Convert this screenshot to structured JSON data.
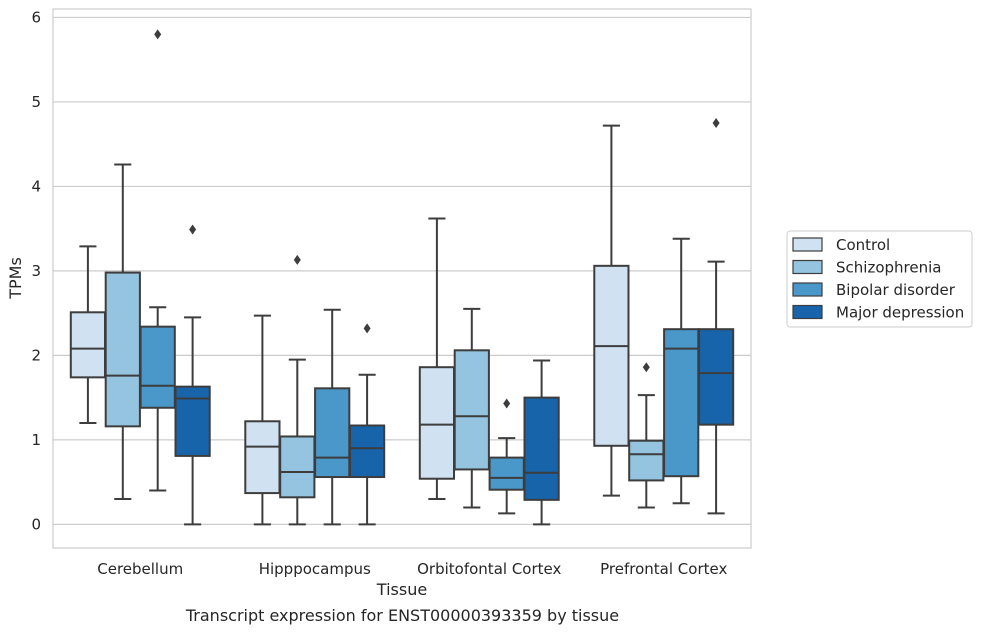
{
  "chart_data": {
    "type": "box",
    "title": "",
    "caption": "Transcript expression for ENST00000393359 by tissue",
    "xlabel": "Tissue",
    "ylabel": "TPMs",
    "ylim": [
      -0.28,
      6.1
    ],
    "yticks": [
      "0",
      "1",
      "2",
      "3",
      "4",
      "5",
      "6"
    ],
    "grid": "horizontal",
    "legend_position": "right",
    "categories": [
      "Cerebellum",
      "Hipppocampus",
      "Orbitofontal Cortex",
      "Prefrontal Cortex"
    ],
    "series": [
      {
        "name": "Control",
        "color": "#d0e1f2",
        "boxes": [
          {
            "whislo": 1.2,
            "q1": 1.74,
            "med": 2.08,
            "q3": 2.51,
            "whishi": 3.29,
            "fliers": []
          },
          {
            "whislo": 0.0,
            "q1": 0.37,
            "med": 0.92,
            "q3": 1.22,
            "whishi": 2.47,
            "fliers": []
          },
          {
            "whislo": 0.3,
            "q1": 0.54,
            "med": 1.18,
            "q3": 1.86,
            "whishi": 3.62,
            "fliers": []
          },
          {
            "whislo": 0.34,
            "q1": 0.93,
            "med": 2.11,
            "q3": 3.06,
            "whishi": 4.72,
            "fliers": []
          }
        ]
      },
      {
        "name": "Schizophrenia",
        "color": "#94c4df",
        "boxes": [
          {
            "whislo": 0.3,
            "q1": 1.16,
            "med": 1.76,
            "q3": 2.98,
            "whishi": 4.26,
            "fliers": []
          },
          {
            "whislo": 0.0,
            "q1": 0.32,
            "med": 0.62,
            "q3": 1.04,
            "whishi": 1.95,
            "fliers": [
              3.13
            ]
          },
          {
            "whislo": 0.2,
            "q1": 0.65,
            "med": 1.28,
            "q3": 2.06,
            "whishi": 2.55,
            "fliers": []
          },
          {
            "whislo": 0.2,
            "q1": 0.52,
            "med": 0.83,
            "q3": 0.99,
            "whishi": 1.53,
            "fliers": [
              1.86
            ]
          }
        ]
      },
      {
        "name": "Bipolar disorder",
        "color": "#4a98c9",
        "boxes": [
          {
            "whislo": 0.4,
            "q1": 1.38,
            "med": 1.64,
            "q3": 2.34,
            "whishi": 2.57,
            "fliers": [
              5.8
            ]
          },
          {
            "whislo": 0.0,
            "q1": 0.56,
            "med": 0.79,
            "q3": 1.61,
            "whishi": 2.54,
            "fliers": []
          },
          {
            "whislo": 0.13,
            "q1": 0.41,
            "med": 0.55,
            "q3": 0.79,
            "whishi": 1.02,
            "fliers": [
              1.43
            ]
          },
          {
            "whislo": 0.25,
            "q1": 0.57,
            "med": 2.08,
            "q3": 2.31,
            "whishi": 3.38,
            "fliers": []
          }
        ]
      },
      {
        "name": "Major depression",
        "color": "#1764ab",
        "boxes": [
          {
            "whislo": 0.0,
            "q1": 0.81,
            "med": 1.49,
            "q3": 1.63,
            "whishi": 2.45,
            "fliers": [
              3.49
            ]
          },
          {
            "whislo": 0.0,
            "q1": 0.56,
            "med": 0.9,
            "q3": 1.17,
            "whishi": 1.77,
            "fliers": [
              2.32
            ]
          },
          {
            "whislo": 0.0,
            "q1": 0.29,
            "med": 0.61,
            "q3": 1.5,
            "whishi": 1.94,
            "fliers": []
          },
          {
            "whislo": 0.13,
            "q1": 1.18,
            "med": 1.79,
            "q3": 2.31,
            "whishi": 3.11,
            "fliers": [
              4.75
            ]
          }
        ]
      }
    ]
  }
}
